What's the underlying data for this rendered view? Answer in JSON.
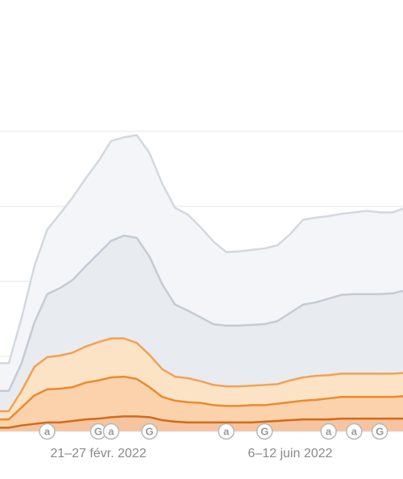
{
  "chart_data": {
    "type": "area",
    "categories": [
      null,
      null,
      null,
      null,
      null,
      null,
      null,
      "21–27 févr. 2022",
      null,
      null,
      null,
      null,
      null,
      null,
      null,
      null,
      null,
      null,
      null,
      null,
      null,
      null,
      "6–12 juin 2022",
      null,
      null,
      null,
      null,
      null,
      null,
      null,
      null,
      null
    ],
    "series": [
      {
        "color": "#d3d8df",
        "fill": "#f3f5f8",
        "values": [
          0.91,
          1.51,
          2.2,
          2.69,
          2.9,
          3.12,
          3.37,
          3.6,
          3.87,
          3.92,
          3.95,
          3.71,
          3.3,
          2.98,
          2.89,
          2.72,
          2.53,
          2.39,
          2.4,
          2.42,
          2.44,
          2.48,
          2.63,
          2.82,
          2.85,
          2.87,
          2.9,
          2.92,
          2.94,
          2.92,
          2.92,
          2.98
        ]
      },
      {
        "color": "#c5cbd4",
        "fill": "#e8ebf0",
        "values": [
          0.54,
          0.91,
          1.45,
          1.83,
          1.91,
          2.02,
          2.2,
          2.37,
          2.54,
          2.61,
          2.58,
          2.33,
          1.96,
          1.69,
          1.61,
          1.52,
          1.43,
          1.41,
          1.41,
          1.42,
          1.43,
          1.47,
          1.58,
          1.69,
          1.72,
          1.77,
          1.82,
          1.83,
          1.83,
          1.83,
          1.84,
          1.88
        ]
      },
      {
        "color": "#f1a254",
        "fill": "#fde3c6",
        "values": [
          0.27,
          0.54,
          0.86,
          0.99,
          1.01,
          1.05,
          1.13,
          1.19,
          1.24,
          1.24,
          1.18,
          1.02,
          0.83,
          0.73,
          0.71,
          0.67,
          0.62,
          0.6,
          0.6,
          0.61,
          0.62,
          0.63,
          0.68,
          0.72,
          0.74,
          0.75,
          0.77,
          0.77,
          0.77,
          0.77,
          0.77,
          0.78
        ]
      },
      {
        "color": "#ec8a2c",
        "fill": "#fbd2ab",
        "values": [
          0.16,
          0.32,
          0.48,
          0.56,
          0.57,
          0.59,
          0.65,
          0.68,
          0.72,
          0.73,
          0.7,
          0.59,
          0.46,
          0.41,
          0.39,
          0.38,
          0.35,
          0.34,
          0.34,
          0.35,
          0.35,
          0.37,
          0.39,
          0.41,
          0.42,
          0.44,
          0.46,
          0.46,
          0.46,
          0.46,
          0.46,
          0.47
        ]
      },
      {
        "color": "#cf6b1c",
        "fill": "#f6c4a0",
        "values": [
          0.05,
          0.08,
          0.1,
          0.12,
          0.12,
          0.14,
          0.16,
          0.17,
          0.19,
          0.2,
          0.2,
          0.19,
          0.15,
          0.13,
          0.12,
          0.12,
          0.12,
          0.12,
          0.12,
          0.12,
          0.13,
          0.14,
          0.15,
          0.16,
          0.16,
          0.16,
          0.17,
          0.17,
          0.17,
          0.17,
          0.17,
          0.17
        ]
      }
    ],
    "ylim": [
      0,
      5.75
    ],
    "yticks": [
      1,
      2,
      3,
      4
    ],
    "grid": true,
    "annotations": [
      {
        "label": "a",
        "category": 3
      },
      {
        "label": "G",
        "category": 7
      },
      {
        "label": "a",
        "category": 8
      },
      {
        "label": "G",
        "category": 11
      },
      {
        "label": "a",
        "category": 17
      },
      {
        "label": "G",
        "category": 20
      },
      {
        "label": "a",
        "category": 25
      },
      {
        "label": "a",
        "category": 27
      },
      {
        "label": "G",
        "category": 29
      }
    ]
  }
}
